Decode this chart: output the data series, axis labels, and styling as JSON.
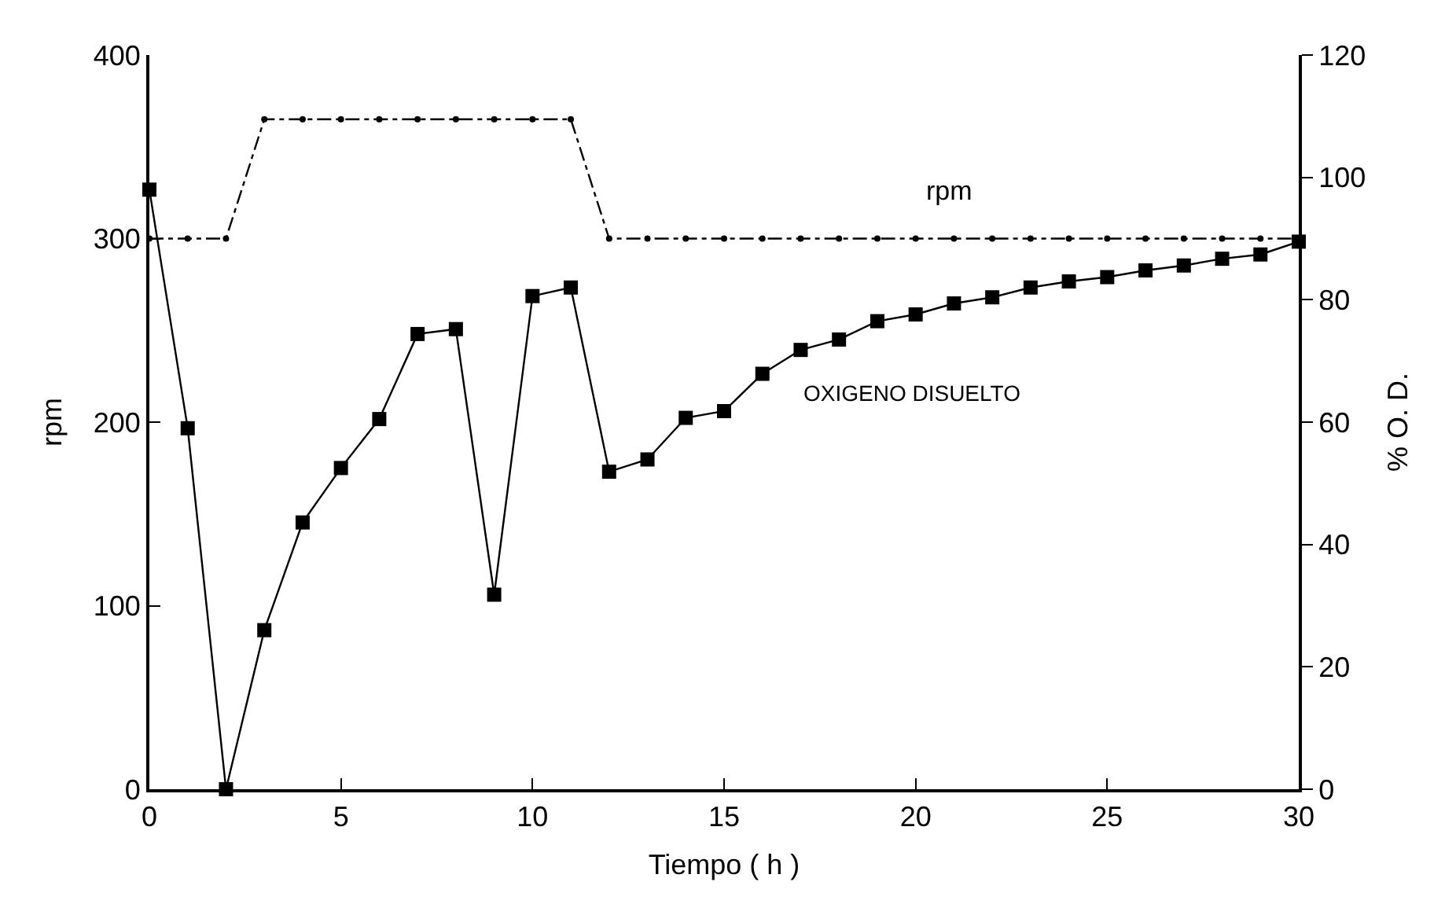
{
  "chart_data": {
    "type": "line",
    "xlabel": "Tiempo ( h )",
    "ylabel": "rpm",
    "y2label": "% O. D.",
    "xlim": [
      0,
      30
    ],
    "xticks": [
      0,
      5,
      10,
      15,
      20,
      25,
      30
    ],
    "ylim": [
      0,
      400
    ],
    "yticks": [
      0,
      100,
      200,
      300,
      400
    ],
    "y2lim": [
      0,
      120
    ],
    "y2ticks": [
      0,
      20,
      40,
      60,
      80,
      100,
      120
    ],
    "series": [
      {
        "color": "#000000",
        "marker": "circle",
        "line_style": "dashed",
        "x": [
          0,
          1,
          2,
          3,
          4,
          5,
          6,
          7,
          8,
          9,
          10,
          11,
          12,
          13,
          14,
          15,
          16,
          17,
          18,
          19,
          20,
          21,
          22,
          23,
          24,
          25,
          26,
          27,
          28,
          29,
          30
        ],
        "values": [
          300,
          300,
          300,
          365,
          365,
          365,
          365,
          365,
          365,
          365,
          365,
          365,
          300,
          300,
          300,
          300,
          300,
          300,
          300,
          300,
          300,
          300,
          300,
          300,
          300,
          300,
          300,
          300,
          300,
          300,
          300
        ]
      },
      {
        "color": "#000000",
        "marker": "square",
        "line_style": "solid",
        "axis": "y2",
        "x": [
          0,
          1,
          2,
          3,
          4,
          5,
          6,
          7,
          8,
          9,
          10,
          11,
          12,
          13,
          14,
          15,
          16,
          17,
          18,
          19,
          20,
          21,
          22,
          23,
          24,
          25,
          26,
          27,
          28,
          29,
          30
        ],
        "values": [
          98,
          59,
          0,
          26,
          43.6,
          52.5,
          60.5,
          74.4,
          75.2,
          31.8,
          80.6,
          82,
          51.9,
          53.9,
          60.7,
          61.8,
          67.9,
          71.8,
          73.5,
          76.5,
          77.6,
          79.4,
          80.4,
          82,
          83,
          83.7,
          84.8,
          85.6,
          86.7,
          87.4,
          89.5
        ]
      }
    ],
    "annotations": [
      "rpm",
      "OXIGENO DISUELTO"
    ]
  }
}
